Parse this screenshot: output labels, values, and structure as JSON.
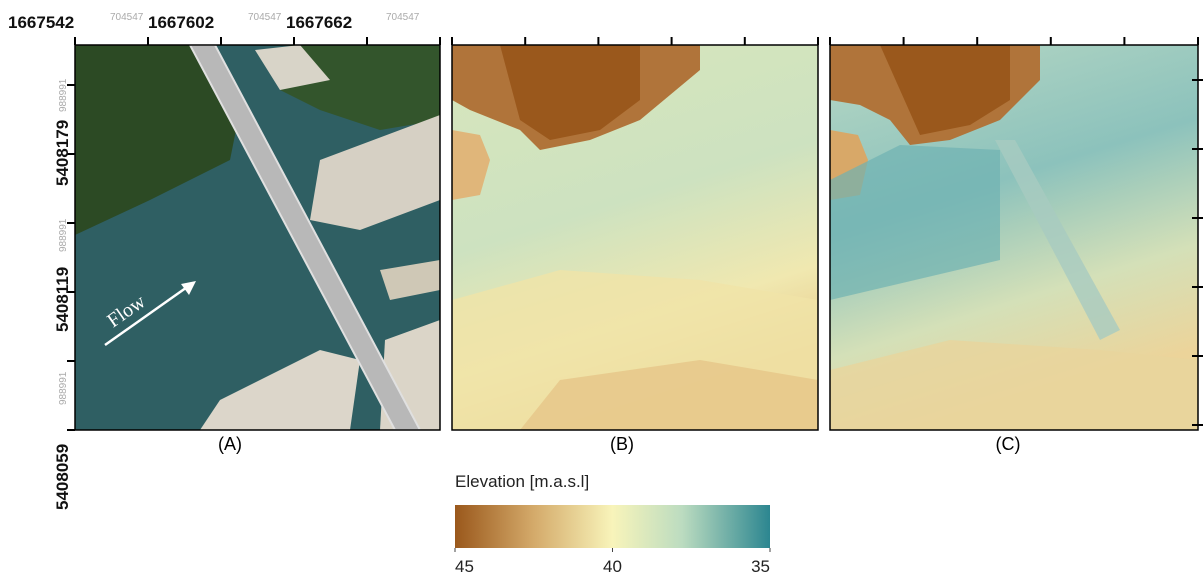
{
  "x_labels": [
    {
      "main": "1667542",
      "minor": "704547"
    },
    {
      "main": "1667602",
      "minor": "704547"
    },
    {
      "main": "1667662",
      "minor": "704547"
    }
  ],
  "y_labels": [
    {
      "main": "5408059",
      "minor": "988991"
    },
    {
      "main": "5408119",
      "minor": "988991"
    },
    {
      "main": "5408179",
      "minor": "988991"
    }
  ],
  "panels": [
    "(A)",
    "(B)",
    "(C)"
  ],
  "annotation": "Flow",
  "colorbar": {
    "label": "Elevation [m.a.s.l]",
    "range": [
      45,
      35
    ],
    "ticks": [
      45,
      40,
      35
    ]
  }
}
